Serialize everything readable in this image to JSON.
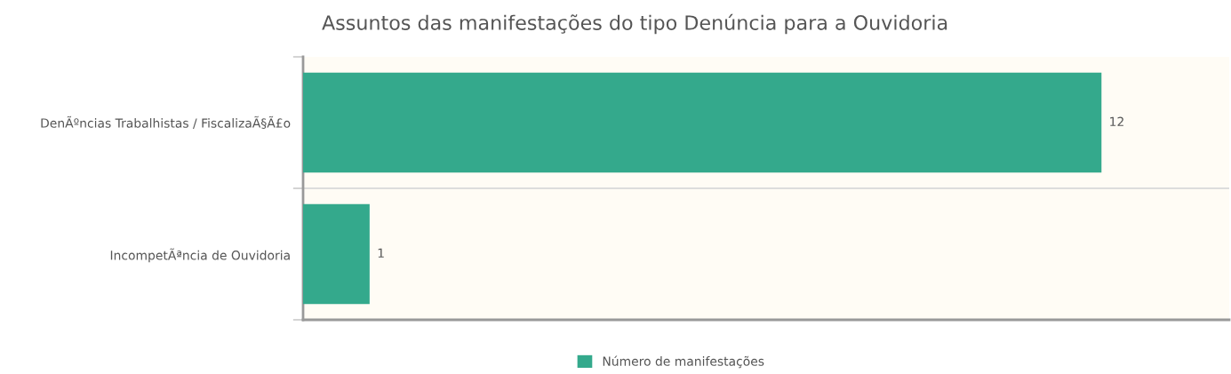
{
  "chart_data": {
    "type": "bar",
    "orientation": "horizontal",
    "title": "Assuntos das manifestações do tipo Denúncia para a Ouvidoria",
    "categories": [
      "DenÃºncias Trabalhistas / FiscalizaÃ§Ã£o",
      "IncompetÃªncia de Ouvidoria"
    ],
    "series": [
      {
        "name": "Número de manifestações",
        "color": "#34a98c",
        "values": [
          12,
          1
        ]
      }
    ],
    "data_labels": true,
    "legend": "bottom",
    "grid": false
  }
}
